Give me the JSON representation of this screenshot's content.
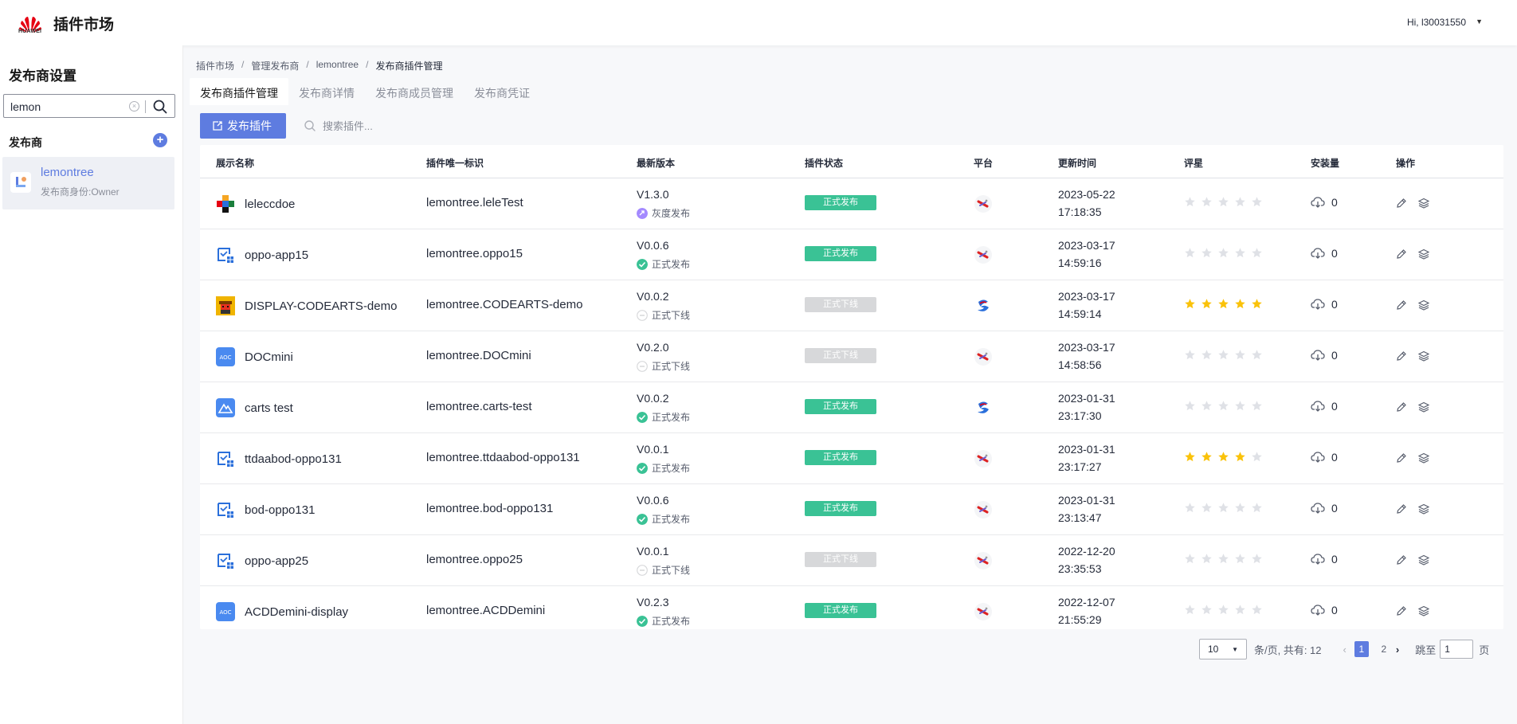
{
  "header": {
    "logo_text": "HUAWEI",
    "brand": "插件市场",
    "user": "Hi, l30031550"
  },
  "sidebar": {
    "title": "发布商设置",
    "search_value": "lemon",
    "section_label": "发布商",
    "publisher": {
      "name": "lemontree",
      "role": "发布商身份:Owner"
    }
  },
  "breadcrumb": [
    "插件市场",
    "管理发布商",
    "lemontree",
    "发布商插件管理"
  ],
  "tabs": [
    "发布商插件管理",
    "发布商详情",
    "发布商成员管理",
    "发布商凭证"
  ],
  "toolbar": {
    "publish_label": "发布插件",
    "search_placeholder": "搜索插件..."
  },
  "table": {
    "columns": [
      "展示名称",
      "插件唯一标识",
      "最新版本",
      "插件状态",
      "平台",
      "更新时间",
      "评星",
      "安装量",
      "操作"
    ],
    "rows": [
      {
        "name": "leleccdoe",
        "icon": "grid-colorful-icon",
        "id": "lemontree.leleTest",
        "version": "V1.3.0",
        "ver_status": "灰度发布",
        "ver_kind": "gray",
        "status": "正式发布",
        "status_kind": "on",
        "platform": "platform-a-icon",
        "date": "2023-05-22",
        "time": "17:18:35",
        "rating": 0,
        "installs": "0"
      },
      {
        "name": "oppo-app15",
        "icon": "app-blue-icon",
        "id": "lemontree.oppo15",
        "version": "V0.0.6",
        "ver_status": "正式发布",
        "ver_kind": "ok",
        "status": "正式发布",
        "status_kind": "on",
        "platform": "platform-a-icon",
        "date": "2023-03-17",
        "time": "14:59:16",
        "rating": 0,
        "installs": "0"
      },
      {
        "name": "DISPLAY-CODEARTS-demo",
        "icon": "pixel-avatar-icon",
        "id": "lemontree.CODEARTS-demo",
        "version": "V0.0.2",
        "ver_status": "正式下线",
        "ver_kind": "off",
        "status": "正式下线",
        "status_kind": "off",
        "platform": "platform-b-icon",
        "date": "2023-03-17",
        "time": "14:59:14",
        "rating": 5,
        "installs": "0"
      },
      {
        "name": "DOCmini",
        "icon": "aoc-icon",
        "id": "lemontree.DOCmini",
        "version": "V0.2.0",
        "ver_status": "正式下线",
        "ver_kind": "off",
        "status": "正式下线",
        "status_kind": "off",
        "platform": "platform-a-icon",
        "date": "2023-03-17",
        "time": "14:58:56",
        "rating": 0,
        "installs": "0"
      },
      {
        "name": "carts test",
        "icon": "mountain-blue-icon",
        "id": "lemontree.carts-test",
        "version": "V0.0.2",
        "ver_status": "正式发布",
        "ver_kind": "ok",
        "status": "正式发布",
        "status_kind": "on",
        "platform": "platform-b-icon",
        "date": "2023-01-31",
        "time": "23:17:30",
        "rating": 0,
        "installs": "0"
      },
      {
        "name": "ttdaabod-oppo131",
        "icon": "app-blue-icon",
        "id": "lemontree.ttdaabod-oppo131",
        "version": "V0.0.1",
        "ver_status": "正式发布",
        "ver_kind": "ok",
        "status": "正式发布",
        "status_kind": "on",
        "platform": "platform-a-icon",
        "date": "2023-01-31",
        "time": "23:17:27",
        "rating": 4,
        "installs": "0"
      },
      {
        "name": "bod-oppo131",
        "icon": "app-blue-icon",
        "id": "lemontree.bod-oppo131",
        "version": "V0.0.6",
        "ver_status": "正式发布",
        "ver_kind": "ok",
        "status": "正式发布",
        "status_kind": "on",
        "platform": "platform-a-icon",
        "date": "2023-01-31",
        "time": "23:13:47",
        "rating": 0,
        "installs": "0"
      },
      {
        "name": "oppo-app25",
        "icon": "app-blue-icon",
        "id": "lemontree.oppo25",
        "version": "V0.0.1",
        "ver_status": "正式下线",
        "ver_kind": "off",
        "status": "正式下线",
        "status_kind": "off",
        "platform": "platform-a-icon",
        "date": "2022-12-20",
        "time": "23:35:53",
        "rating": 0,
        "installs": "0"
      },
      {
        "name": "ACDDemini-display",
        "icon": "aoc-icon",
        "id": "lemontree.ACDDemini",
        "version": "V0.2.3",
        "ver_status": "正式发布",
        "ver_kind": "ok",
        "status": "正式发布",
        "status_kind": "on",
        "platform": "platform-a-icon",
        "date": "2022-12-07",
        "time": "21:55:29",
        "rating": 0,
        "installs": "0"
      }
    ]
  },
  "pagination": {
    "page_size": "10",
    "summary": "条/页, 共有: 12",
    "pages": [
      "1",
      "2"
    ],
    "current": "1",
    "jump_label": "跳至",
    "jump_value": "1",
    "page_unit": "页"
  },
  "colors": {
    "primary": "#5e7ce0",
    "status_on": "#3ac295",
    "status_off": "#d7d8da",
    "star_on": "#fac20a",
    "star_off": "#dfe1e6"
  }
}
